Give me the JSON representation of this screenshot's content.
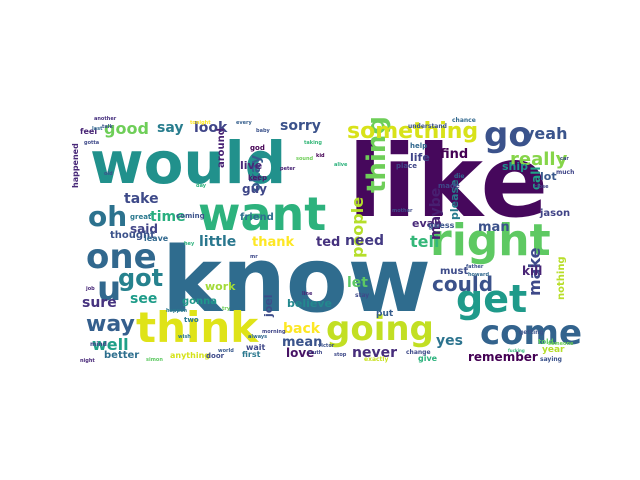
{
  "figure": {
    "type": "word-cloud",
    "colormap": "viridis",
    "background": "#ffffff",
    "axes": "off"
  },
  "words": [
    {
      "text": "know",
      "color": "#2f6c8e"
    },
    {
      "text": "like",
      "color": "#46085c"
    },
    {
      "text": "would",
      "color": "#21918c"
    },
    {
      "text": "want",
      "color": "#2db27d"
    },
    {
      "text": "think",
      "color": "#dfe318"
    },
    {
      "text": "going",
      "color": "#c2df23"
    },
    {
      "text": "right",
      "color": "#5ec962"
    },
    {
      "text": "come",
      "color": "#33638d"
    },
    {
      "text": "get",
      "color": "#1f9a8a"
    },
    {
      "text": "one",
      "color": "#31688e"
    },
    {
      "text": "go",
      "color": "#3b528b"
    },
    {
      "text": "oh",
      "color": "#2c728e"
    },
    {
      "text": "thing",
      "color": "#6ece58"
    },
    {
      "text": "u",
      "color": "#31688e"
    },
    {
      "text": "something",
      "color": "#d8e219"
    },
    {
      "text": "good",
      "color": "#6ece58"
    },
    {
      "text": "got",
      "color": "#26828e"
    },
    {
      "text": "way",
      "color": "#355f8d"
    },
    {
      "text": "really",
      "color": "#86d549"
    },
    {
      "text": "could",
      "color": "#3b528b"
    },
    {
      "text": "make",
      "color": "#3e4989"
    },
    {
      "text": "yeah",
      "color": "#3a548c"
    },
    {
      "text": "people",
      "color": "#b5de2b"
    },
    {
      "text": "well",
      "color": "#1fa088"
    },
    {
      "text": "back",
      "color": "#fde725"
    },
    {
      "text": "tell",
      "color": "#35b779"
    },
    {
      "text": "need",
      "color": "#443a83"
    },
    {
      "text": "look",
      "color": "#404688"
    },
    {
      "text": "say",
      "color": "#287d8e"
    },
    {
      "text": "sorry",
      "color": "#3b528b"
    },
    {
      "text": "time",
      "color": "#29af7f"
    },
    {
      "text": "little",
      "color": "#2a778e"
    },
    {
      "text": "okay",
      "color": "#365c8d"
    },
    {
      "text": "take",
      "color": "#3e4a89"
    },
    {
      "text": "see",
      "color": "#1e9c89"
    },
    {
      "text": "sure",
      "color": "#46337f"
    },
    {
      "text": "maybe",
      "color": "#481f70"
    },
    {
      "text": "love",
      "color": "#471365"
    },
    {
      "text": "mean",
      "color": "#3a538b"
    },
    {
      "text": "let",
      "color": "#5cc863"
    },
    {
      "text": "never",
      "color": "#472d7b"
    },
    {
      "text": "yes",
      "color": "#2c738e"
    },
    {
      "text": "remember",
      "color": "#440154"
    },
    {
      "text": "said",
      "color": "#414487"
    },
    {
      "text": "thank",
      "color": "#fde725"
    },
    {
      "text": "ted",
      "color": "#46327e"
    },
    {
      "text": "find",
      "color": "#440154"
    },
    {
      "text": "man",
      "color": "#3b518b"
    },
    {
      "text": "kill",
      "color": "#482475"
    },
    {
      "text": "call",
      "color": "#20a386"
    },
    {
      "text": "please",
      "color": "#287c8e"
    },
    {
      "text": "guy",
      "color": "#3f4788"
    },
    {
      "text": "work",
      "color": "#a2da37"
    },
    {
      "text": "live",
      "color": "#482878"
    },
    {
      "text": "believe",
      "color": "#23888e"
    },
    {
      "text": "evan",
      "color": "#482878"
    },
    {
      "text": "life",
      "color": "#404588"
    },
    {
      "text": "joel",
      "color": "#3d4d8a"
    },
    {
      "text": "better",
      "color": "#2e6f8e"
    },
    {
      "text": "thought",
      "color": "#3b528b"
    },
    {
      "text": "ship",
      "color": "#20928c"
    },
    {
      "text": "lot",
      "color": "#38588c"
    },
    {
      "text": "jason",
      "color": "#414487"
    },
    {
      "text": "nothing",
      "color": "#b8de29"
    },
    {
      "text": "must",
      "color": "#3e4c8a"
    },
    {
      "text": "friend",
      "color": "#2d708e"
    },
    {
      "text": "around",
      "color": "#482173"
    },
    {
      "text": "gonna",
      "color": "#1f988b"
    },
    {
      "text": "year",
      "color": "#b5de2b"
    },
    {
      "text": "put",
      "color": "#365c8d"
    },
    {
      "text": "guess",
      "color": "#3a548c"
    },
    {
      "text": "wait",
      "color": "#3f4788"
    },
    {
      "text": "anything",
      "color": "#d5e21a"
    },
    {
      "text": "keep",
      "color": "#481769"
    },
    {
      "text": "leave",
      "color": "#31688e"
    },
    {
      "text": "happened",
      "color": "#482878"
    },
    {
      "text": "feel",
      "color": "#482475"
    },
    {
      "text": "coming",
      "color": "#3b528b"
    },
    {
      "text": "first",
      "color": "#2a788e"
    },
    {
      "text": "place",
      "color": "#404688"
    },
    {
      "text": "help",
      "color": "#31688e"
    },
    {
      "text": "told",
      "color": "#5ec962"
    },
    {
      "text": "two",
      "color": "#29798e"
    },
    {
      "text": "great",
      "color": "#2a788e"
    },
    {
      "text": "door",
      "color": "#3e4a89"
    },
    {
      "text": "give",
      "color": "#2db27d"
    },
    {
      "text": "god",
      "color": "#440154"
    },
    {
      "text": "made",
      "color": "#3f4788"
    },
    {
      "text": "die",
      "color": "#31688e"
    },
    {
      "text": "stay",
      "color": "#3e4989"
    },
    {
      "text": "chance",
      "color": "#31688e"
    },
    {
      "text": "much",
      "color": "#404688"
    },
    {
      "text": "saying",
      "color": "#3b528b"
    },
    {
      "text": "every",
      "color": "#355f8d"
    },
    {
      "text": "understand",
      "color": "#3b528b"
    },
    {
      "text": "another",
      "color": "#46307e"
    },
    {
      "text": "happen",
      "color": "#2a788e"
    },
    {
      "text": "change",
      "color": "#3e4a89"
    },
    {
      "text": "exactly",
      "color": "#c8e020"
    },
    {
      "text": "getting",
      "color": "#3b528b"
    },
    {
      "text": "mind",
      "color": "#3f4788"
    },
    {
      "text": "night",
      "color": "#482878"
    },
    {
      "text": "world",
      "color": "#38588c"
    },
    {
      "text": "simon",
      "color": "#5ec962"
    },
    {
      "text": "tonight",
      "color": "#fde725"
    },
    {
      "text": "baby",
      "color": "#3b528b"
    },
    {
      "text": "last",
      "color": "#31688e"
    },
    {
      "text": "alive",
      "color": "#2db27d"
    },
    {
      "text": "peter",
      "color": "#482475"
    },
    {
      "text": "sound",
      "color": "#6ece58"
    },
    {
      "text": "kid",
      "color": "#440154"
    },
    {
      "text": "close",
      "color": "#404688"
    },
    {
      "text": "fucking",
      "color": "#35b779"
    },
    {
      "text": "mother",
      "color": "#3e4a89"
    },
    {
      "text": "father",
      "color": "#3b528b"
    },
    {
      "text": "howard",
      "color": "#31688e"
    },
    {
      "text": "someone",
      "color": "#6ece58"
    },
    {
      "text": "car",
      "color": "#3e4989"
    },
    {
      "text": "try",
      "color": "#6ece58"
    },
    {
      "text": "always",
      "color": "#31688e"
    },
    {
      "text": "stop",
      "color": "#3e4989"
    },
    {
      "text": "line",
      "color": "#482475"
    },
    {
      "text": "truth",
      "color": "#3f4788"
    },
    {
      "text": "victor",
      "color": "#3b528b"
    },
    {
      "text": "mr",
      "color": "#3e4989"
    },
    {
      "text": "old",
      "color": "#3b528b"
    },
    {
      "text": "wish",
      "color": "#2a788e"
    },
    {
      "text": "hey",
      "color": "#2db27d"
    },
    {
      "text": "gotta",
      "color": "#3e4989"
    },
    {
      "text": "day",
      "color": "#2db27d"
    },
    {
      "text": "morning",
      "color": "#404688"
    },
    {
      "text": "talk",
      "color": "#3b528b"
    },
    {
      "text": "job",
      "color": "#482878"
    },
    {
      "text": "taking",
      "color": "#35b779"
    }
  ]
}
